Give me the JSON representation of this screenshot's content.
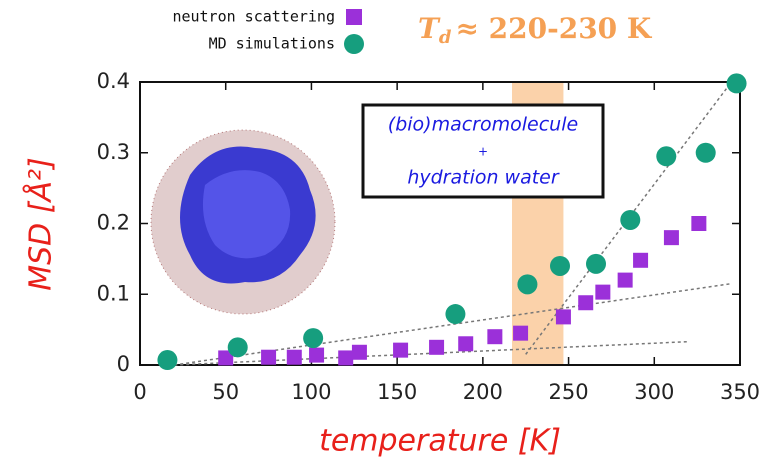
{
  "chart_data": {
    "type": "scatter",
    "annotation": {
      "main": "T",
      "sub": "d",
      "rest": "≈ 220-230 K",
      "color": "#f5a054"
    },
    "box_text": [
      "(bio)macromolecule",
      "+",
      "hydration water"
    ],
    "xlabel": "temperature [K]",
    "ylabel": "MSD [Å²]",
    "label_color": "#e8201a",
    "xlim": [
      0,
      350
    ],
    "ylim": [
      0,
      0.4
    ],
    "xticks": [
      0,
      50,
      100,
      150,
      200,
      250,
      300,
      350
    ],
    "yticks": [
      0,
      0.1,
      0.2,
      0.3,
      0.4
    ],
    "highlight_xrange": [
      217,
      247
    ],
    "highlight_color": "#fbd2aa",
    "legend": "top-left",
    "series": [
      {
        "name": "neutron scattering",
        "color": "#9b30d9",
        "marker": "square",
        "x": [
          50,
          75,
          90,
          103,
          120,
          128,
          152,
          173,
          190,
          207,
          222,
          247,
          260,
          270,
          283,
          292,
          310,
          326
        ],
        "values": [
          0.01,
          0.011,
          0.011,
          0.014,
          0.01,
          0.018,
          0.021,
          0.025,
          0.03,
          0.04,
          0.045,
          0.068,
          0.088,
          0.103,
          0.12,
          0.148,
          0.18,
          0.2
        ]
      },
      {
        "name": "MD simulations",
        "color": "#169e7e",
        "marker": "circle",
        "x": [
          16,
          57,
          101,
          184,
          226,
          245,
          266,
          286,
          307,
          330,
          348
        ],
        "values": [
          0.007,
          0.025,
          0.038,
          0.072,
          0.114,
          0.14,
          0.143,
          0.205,
          0.295,
          0.3,
          0.398
        ]
      }
    ],
    "fit_lines": [
      {
        "x": [
          20,
          345
        ],
        "values": [
          0,
          0.115
        ]
      },
      {
        "x": [
          20,
          320
        ],
        "values": [
          0,
          0.033
        ]
      },
      {
        "x": [
          225,
          345
        ],
        "values": [
          0.015,
          0.4
        ]
      }
    ]
  }
}
